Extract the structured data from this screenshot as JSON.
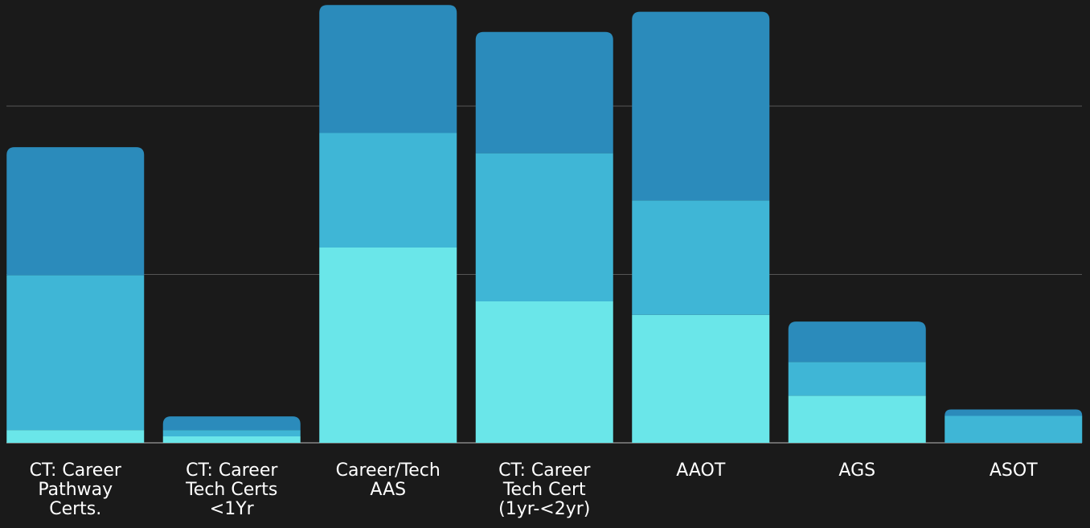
{
  "chart_data": {
    "type": "stacked-bar",
    "categories": [
      "CT: Career Pathway Certs.",
      "CT: Career Tech Certs <1Yr",
      "Career/Tech AAS",
      "CT: Career Tech Cert (1yr-<2yr)",
      "AAOT",
      "AGS",
      "ASOT"
    ],
    "series": [
      {
        "color": "#6ae6e9",
        "values": [
          7.6,
          3.8,
          116,
          84,
          76,
          28,
          0
        ]
      },
      {
        "color": "#3fb6d6",
        "values": [
          92,
          3.8,
          68,
          88,
          68,
          20,
          16
        ]
      },
      {
        "color": "#2b8bbb",
        "values": [
          76,
          8.1,
          76,
          72,
          112,
          24,
          3.8
        ]
      }
    ],
    "ylim": [
      0,
      263
    ],
    "yticks": [
      0,
      100,
      200
    ],
    "grid": true
  }
}
